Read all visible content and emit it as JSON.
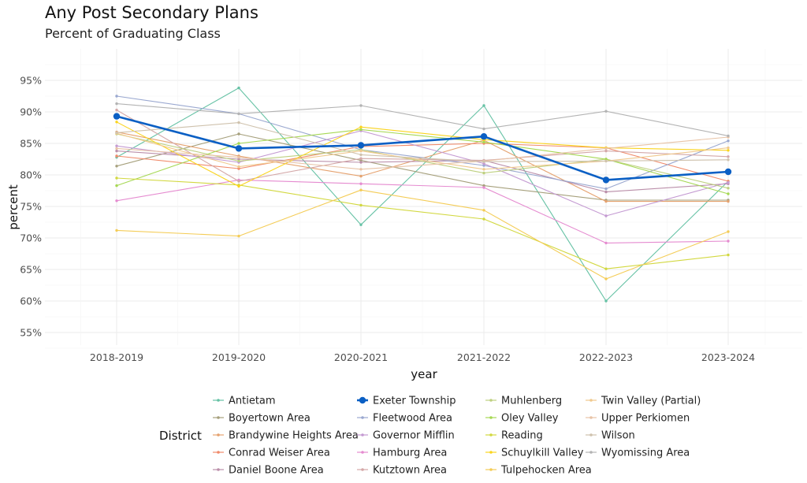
{
  "title": "Any Post Secondary Plans",
  "subtitle": "Percent of Graduating Class",
  "chart_data": {
    "type": "line",
    "title": "Any Post Secondary Plans",
    "subtitle": "Percent of Graduating Class",
    "xlabel": "year",
    "ylabel": "percent",
    "ylim": [
      53,
      100
    ],
    "y_ticks": [
      "55%",
      "60%",
      "65%",
      "70%",
      "75%",
      "80%",
      "85%",
      "90%",
      "95%"
    ],
    "y_tick_values": [
      55,
      60,
      65,
      70,
      75,
      80,
      85,
      90,
      95
    ],
    "grid": true,
    "legend_title": "District",
    "legend_position": "bottom",
    "highlight_series": "Exeter Township",
    "categories": [
      "2018-2019",
      "2019-2020",
      "2020-2021",
      "2021-2022",
      "2022-2023",
      "2023-2024"
    ],
    "series": [
      {
        "name": "Antietam",
        "color": "#66c2a5",
        "values": [
          82.8,
          93.8,
          72.1,
          91.0,
          60.0,
          79.0
        ]
      },
      {
        "name": "Boyertown Area",
        "color": "#a6a07c",
        "values": [
          81.4,
          86.5,
          82.3,
          78.3,
          76.0,
          76.0
        ]
      },
      {
        "name": "Brandywine Heights Area",
        "color": "#e5a26f",
        "values": [
          86.8,
          83.0,
          79.8,
          85.5,
          75.8,
          75.8
        ]
      },
      {
        "name": "Conrad Weiser Area",
        "color": "#f08a6a",
        "values": [
          83.0,
          81.0,
          84.5,
          85.0,
          84.3,
          79.0
        ]
      },
      {
        "name": "Daniel Boone Area",
        "color": "#bb8faa",
        "values": [
          83.8,
          82.5,
          82.0,
          82.3,
          77.3,
          78.6
        ]
      },
      {
        "name": "Exeter Township",
        "color": "#0a5fc4",
        "values": [
          89.3,
          84.2,
          84.7,
          86.1,
          79.2,
          80.5
        ]
      },
      {
        "name": "Fleetwood Area",
        "color": "#9aa8d0",
        "values": [
          92.5,
          89.7,
          84.0,
          81.5,
          77.8,
          85.4
        ]
      },
      {
        "name": "Governor Mifflin",
        "color": "#c49ad2",
        "values": [
          84.6,
          82.0,
          87.0,
          81.8,
          73.5,
          78.8
        ]
      },
      {
        "name": "Hamburg Area",
        "color": "#e58bd0",
        "values": [
          75.9,
          79.2,
          78.6,
          78.0,
          69.2,
          69.5
        ]
      },
      {
        "name": "Kutztown Area",
        "color": "#d4a8a8",
        "values": [
          90.3,
          79.0,
          82.6,
          82.3,
          83.8,
          82.9
        ]
      },
      {
        "name": "Muhlenberg",
        "color": "#bed080",
        "values": [
          86.5,
          82.2,
          84.0,
          80.3,
          82.5,
          77.9
        ]
      },
      {
        "name": "Oley Valley",
        "color": "#a6d854",
        "values": [
          78.3,
          85.0,
          87.2,
          85.2,
          82.5,
          77.0
        ]
      },
      {
        "name": "Reading",
        "color": "#d2d840",
        "values": [
          79.5,
          78.4,
          75.2,
          73.0,
          65.1,
          67.3
        ]
      },
      {
        "name": "Schuylkill Valley",
        "color": "#fad41e",
        "values": [
          88.4,
          78.2,
          87.6,
          85.6,
          84.3,
          83.9
        ]
      },
      {
        "name": "Tulpehocken Area",
        "color": "#f4cc56",
        "values": [
          71.2,
          70.3,
          77.6,
          74.4,
          63.5,
          71.0
        ]
      },
      {
        "name": "Twin Valley (Partial)",
        "color": "#f0c98e",
        "values": [
          86.6,
          81.3,
          83.8,
          80.9,
          82.2,
          84.3
        ]
      },
      {
        "name": "Upper Perkiomen",
        "color": "#e8c3a6",
        "values": [
          84.2,
          82.8,
          80.9,
          82.2,
          84.2,
          86.0
        ]
      },
      {
        "name": "Wilson",
        "color": "#cfc2ad",
        "values": [
          86.7,
          88.3,
          83.2,
          82.1,
          82.2,
          82.4
        ]
      },
      {
        "name": "Wyomissing Area",
        "color": "#b3b3b3",
        "values": [
          91.3,
          89.7,
          91.0,
          87.3,
          90.1,
          86.2
        ]
      }
    ]
  }
}
